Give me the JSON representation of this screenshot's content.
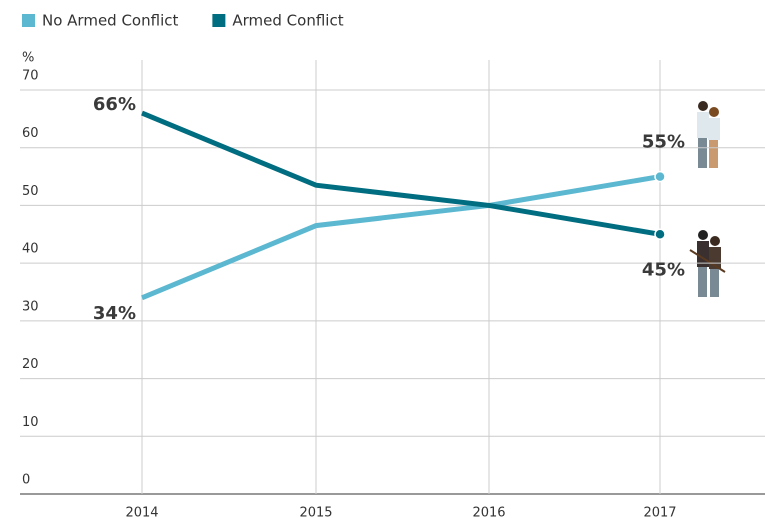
{
  "chart_data": {
    "type": "line",
    "y_label": "%",
    "categories": [
      "2014",
      "2015",
      "2016",
      "2017"
    ],
    "series": [
      {
        "name": "No Armed Conflict",
        "color": "#5bb8d0",
        "values": [
          34,
          46.5,
          50,
          55
        ],
        "value_labels": [
          "34%",
          null,
          null,
          "55%"
        ]
      },
      {
        "name": "Armed Conflict",
        "color": "#006d80",
        "values": [
          66,
          53.5,
          50,
          45
        ],
        "value_labels": [
          "66%",
          null,
          null,
          "45%"
        ]
      }
    ],
    "ylim": [
      0,
      70
    ],
    "yticks": [
      0,
      10,
      20,
      30,
      40,
      50,
      60,
      70
    ],
    "grid": true,
    "legend": "top-left"
  }
}
